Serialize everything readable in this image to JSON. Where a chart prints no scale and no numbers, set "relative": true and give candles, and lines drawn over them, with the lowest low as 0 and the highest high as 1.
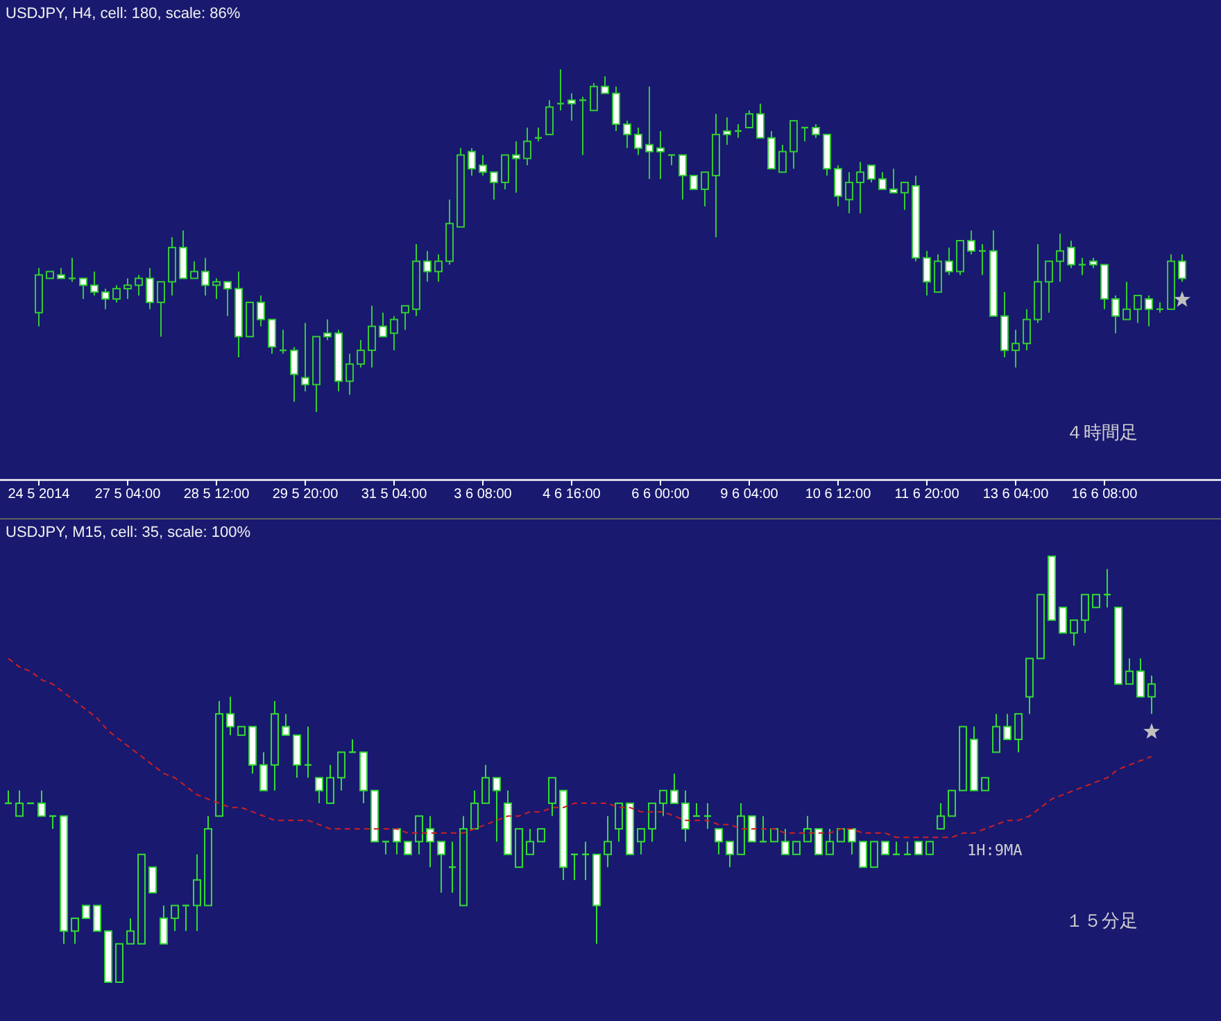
{
  "chart_data": [
    {
      "type": "candlestick",
      "title": "USDJPY, H4, cell: 180, scale: 86%",
      "relative": true,
      "tick_labels": "x",
      "categories": [
        "24 5 2014",
        null,
        null,
        null,
        null,
        null,
        null,
        null,
        "27 5 04:00",
        null,
        null,
        null,
        null,
        null,
        null,
        null,
        "28 5 12:00",
        null,
        null,
        null,
        null,
        null,
        null,
        null,
        "29 5 20:00",
        null,
        null,
        null,
        null,
        null,
        null,
        null,
        "31 5 04:00",
        null,
        null,
        null,
        null,
        null,
        null,
        null,
        "3 6 08:00",
        null,
        null,
        null,
        null,
        null,
        null,
        null,
        "4 6 16:00",
        null,
        null,
        null,
        null,
        null,
        null,
        null,
        "6 6 00:00",
        null,
        null,
        null,
        null,
        null,
        null,
        null,
        "9 6 04:00",
        null,
        null,
        null,
        null,
        null,
        null,
        null,
        "10 6 12:00",
        null,
        null,
        null,
        null,
        null,
        null,
        null,
        "11 6 20:00",
        null,
        null,
        null,
        null,
        null,
        null,
        null,
        "13 6 04:00",
        null,
        null,
        null,
        null,
        null,
        null,
        null,
        "16 6 08:00",
        null,
        null,
        null,
        null,
        null,
        null,
        null
      ],
      "annotations": [
        "４時間足"
      ],
      "series": [
        {
          "type": "candlestick",
          "color": "#33cc33",
          "ohlc": [
            [
              0.29,
              0.42,
              0.25,
              0.4
            ],
            [
              0.39,
              0.41,
              0.39,
              0.41
            ],
            [
              0.4,
              0.42,
              0.39,
              0.39
            ],
            [
              0.39,
              0.45,
              0.38,
              0.39
            ],
            [
              0.39,
              0.39,
              0.33,
              0.37
            ],
            [
              0.37,
              0.41,
              0.34,
              0.35
            ],
            [
              0.35,
              0.36,
              0.3,
              0.33
            ],
            [
              0.33,
              0.37,
              0.32,
              0.36
            ],
            [
              0.36,
              0.39,
              0.33,
              0.37
            ],
            [
              0.37,
              0.4,
              0.34,
              0.39
            ],
            [
              0.39,
              0.42,
              0.3,
              0.32
            ],
            [
              0.32,
              0.38,
              0.22,
              0.38
            ],
            [
              0.38,
              0.51,
              0.34,
              0.48
            ],
            [
              0.48,
              0.53,
              0.39,
              0.39
            ],
            [
              0.39,
              0.44,
              0.39,
              0.41
            ],
            [
              0.41,
              0.45,
              0.34,
              0.37
            ],
            [
              0.37,
              0.39,
              0.33,
              0.38
            ],
            [
              0.38,
              0.38,
              0.28,
              0.36
            ],
            [
              0.36,
              0.41,
              0.16,
              0.22
            ],
            [
              0.22,
              0.32,
              0.22,
              0.32
            ],
            [
              0.32,
              0.34,
              0.25,
              0.27
            ],
            [
              0.27,
              0.27,
              0.17,
              0.19
            ],
            [
              0.18,
              0.24,
              0.17,
              0.18
            ],
            [
              0.18,
              0.19,
              0.03,
              0.11
            ],
            [
              0.1,
              0.26,
              0.06,
              0.08
            ],
            [
              0.08,
              0.22,
              0.0,
              0.22
            ],
            [
              0.23,
              0.27,
              0.21,
              0.22
            ],
            [
              0.23,
              0.24,
              0.06,
              0.09
            ],
            [
              0.09,
              0.17,
              0.05,
              0.14
            ],
            [
              0.14,
              0.21,
              0.13,
              0.18
            ],
            [
              0.18,
              0.31,
              0.13,
              0.25
            ],
            [
              0.25,
              0.29,
              0.22,
              0.22
            ],
            [
              0.23,
              0.28,
              0.18,
              0.27
            ],
            [
              0.29,
              0.31,
              0.24,
              0.31
            ],
            [
              0.3,
              0.49,
              0.28,
              0.44
            ],
            [
              0.44,
              0.47,
              0.38,
              0.41
            ],
            [
              0.41,
              0.46,
              0.38,
              0.44
            ],
            [
              0.44,
              0.62,
              0.43,
              0.55
            ],
            [
              0.54,
              0.77,
              0.54,
              0.75
            ],
            [
              0.76,
              0.77,
              0.69,
              0.71
            ],
            [
              0.72,
              0.75,
              0.69,
              0.7
            ],
            [
              0.7,
              0.7,
              0.62,
              0.67
            ],
            [
              0.67,
              0.75,
              0.65,
              0.75
            ],
            [
              0.75,
              0.79,
              0.64,
              0.74
            ],
            [
              0.74,
              0.83,
              0.72,
              0.79
            ],
            [
              0.8,
              0.83,
              0.79,
              0.8
            ],
            [
              0.81,
              0.91,
              0.81,
              0.89
            ],
            [
              0.9,
              1.0,
              0.88,
              0.9
            ],
            [
              0.91,
              0.93,
              0.85,
              0.9
            ],
            [
              0.91,
              0.92,
              0.75,
              0.91
            ],
            [
              0.88,
              0.96,
              0.88,
              0.95
            ],
            [
              0.95,
              0.98,
              0.93,
              0.93
            ],
            [
              0.93,
              0.95,
              0.82,
              0.84
            ],
            [
              0.84,
              0.85,
              0.77,
              0.81
            ],
            [
              0.81,
              0.83,
              0.75,
              0.77
            ],
            [
              0.78,
              0.95,
              0.68,
              0.76
            ],
            [
              0.77,
              0.82,
              0.68,
              0.76
            ],
            [
              0.75,
              0.75,
              0.72,
              0.75
            ],
            [
              0.75,
              0.75,
              0.62,
              0.69
            ],
            [
              0.69,
              0.69,
              0.65,
              0.65
            ],
            [
              0.65,
              0.7,
              0.6,
              0.7
            ],
            [
              0.69,
              0.87,
              0.51,
              0.81
            ],
            [
              0.82,
              0.86,
              0.78,
              0.81
            ],
            [
              0.82,
              0.84,
              0.8,
              0.82
            ],
            [
              0.83,
              0.88,
              0.83,
              0.87
            ],
            [
              0.87,
              0.9,
              0.8,
              0.8
            ],
            [
              0.8,
              0.82,
              0.71,
              0.71
            ],
            [
              0.7,
              0.78,
              0.7,
              0.76
            ],
            [
              0.76,
              0.85,
              0.71,
              0.85
            ],
            [
              0.83,
              0.83,
              0.79,
              0.83
            ],
            [
              0.83,
              0.84,
              0.8,
              0.81
            ],
            [
              0.81,
              0.81,
              0.69,
              0.71
            ],
            [
              0.71,
              0.72,
              0.6,
              0.63
            ],
            [
              0.62,
              0.7,
              0.58,
              0.67
            ],
            [
              0.67,
              0.73,
              0.58,
              0.7
            ],
            [
              0.72,
              0.72,
              0.67,
              0.68
            ],
            [
              0.68,
              0.7,
              0.65,
              0.65
            ],
            [
              0.65,
              0.71,
              0.64,
              0.64
            ],
            [
              0.64,
              0.67,
              0.59,
              0.67
            ],
            [
              0.66,
              0.69,
              0.44,
              0.45
            ],
            [
              0.45,
              0.47,
              0.34,
              0.38
            ],
            [
              0.35,
              0.46,
              0.35,
              0.44
            ],
            [
              0.44,
              0.48,
              0.4,
              0.41
            ],
            [
              0.41,
              0.5,
              0.4,
              0.5
            ],
            [
              0.5,
              0.53,
              0.46,
              0.47
            ],
            [
              0.47,
              0.49,
              0.4,
              0.47
            ],
            [
              0.47,
              0.53,
              0.28,
              0.28
            ],
            [
              0.28,
              0.35,
              0.16,
              0.18
            ],
            [
              0.18,
              0.24,
              0.13,
              0.2
            ],
            [
              0.2,
              0.3,
              0.18,
              0.27
            ],
            [
              0.27,
              0.49,
              0.26,
              0.38
            ],
            [
              0.38,
              0.44,
              0.29,
              0.44
            ],
            [
              0.44,
              0.52,
              0.38,
              0.47
            ],
            [
              0.48,
              0.5,
              0.42,
              0.43
            ],
            [
              0.43,
              0.45,
              0.4,
              0.43
            ],
            [
              0.44,
              0.45,
              0.42,
              0.43
            ],
            [
              0.43,
              0.43,
              0.3,
              0.33
            ],
            [
              0.33,
              0.34,
              0.23,
              0.28
            ],
            [
              0.27,
              0.38,
              0.27,
              0.3
            ],
            [
              0.3,
              0.34,
              0.26,
              0.34
            ],
            [
              0.33,
              0.34,
              0.25,
              0.3
            ],
            [
              0.3,
              0.32,
              0.29,
              0.3
            ],
            [
              0.3,
              0.46,
              0.3,
              0.44
            ],
            [
              0.44,
              0.46,
              0.38,
              0.39
            ]
          ]
        },
        {
          "type": "scatter",
          "marker": "star",
          "color": "#c0c0c0",
          "values": [
            null,
            null,
            null,
            null,
            null,
            null,
            null,
            null,
            null,
            null,
            null,
            null,
            null,
            null,
            null,
            null,
            null,
            null,
            null,
            null,
            null,
            null,
            null,
            null,
            null,
            null,
            null,
            null,
            null,
            null,
            null,
            null,
            null,
            null,
            null,
            null,
            null,
            null,
            null,
            null,
            null,
            null,
            null,
            null,
            null,
            null,
            null,
            null,
            null,
            null,
            null,
            null,
            null,
            null,
            null,
            null,
            null,
            null,
            null,
            null,
            null,
            null,
            null,
            null,
            null,
            null,
            null,
            null,
            null,
            null,
            null,
            null,
            null,
            null,
            null,
            null,
            null,
            null,
            null,
            null,
            null,
            null,
            null,
            null,
            null,
            null,
            null,
            null,
            null,
            null,
            null,
            null,
            null,
            null,
            null,
            null,
            null,
            null,
            null,
            null,
            null,
            null,
            null,
            0.33
          ]
        }
      ]
    },
    {
      "type": "candlestick",
      "title": "USDJPY, M15, cell: 35, scale: 100%",
      "relative": true,
      "tick_labels": false,
      "categories": [
        null,
        null,
        null,
        null,
        null,
        null,
        null,
        null,
        null,
        null,
        null,
        null,
        null,
        null,
        null,
        null,
        null,
        null,
        null,
        null,
        null,
        null,
        null,
        null,
        null,
        null,
        null,
        null,
        null,
        null,
        null,
        null,
        null,
        null,
        null,
        null,
        null,
        null,
        null,
        null,
        null,
        null,
        null,
        null,
        null,
        null,
        null,
        null,
        null,
        null,
        null,
        null,
        null,
        null,
        null,
        null,
        null,
        null,
        null,
        null,
        null,
        null,
        null,
        null,
        null,
        null,
        null,
        null,
        null,
        null,
        null,
        null,
        null,
        null,
        null,
        null,
        null,
        null,
        null,
        null,
        null,
        null,
        null,
        null,
        null,
        null,
        null,
        null,
        null,
        null,
        null,
        null,
        null,
        null,
        null,
        null,
        null,
        null,
        null,
        null,
        null,
        null,
        null,
        null
      ],
      "annotations": [
        "１５分足"
      ],
      "series": [
        {
          "type": "line",
          "name": "1H:9MA",
          "color": "#cc2020",
          "line_style": "dashed",
          "values": [
            0.76,
            0.74,
            0.73,
            0.71,
            0.7,
            0.68,
            0.66,
            0.64,
            0.62,
            0.59,
            0.57,
            0.55,
            0.53,
            0.51,
            0.49,
            0.48,
            0.46,
            0.44,
            0.43,
            0.42,
            0.41,
            0.41,
            0.4,
            0.39,
            0.38,
            0.38,
            0.38,
            0.38,
            0.37,
            0.36,
            0.36,
            0.36,
            0.36,
            0.36,
            0.36,
            0.36,
            0.35,
            0.35,
            0.35,
            0.35,
            0.35,
            0.35,
            0.36,
            0.37,
            0.38,
            0.39,
            0.39,
            0.4,
            0.4,
            0.41,
            0.41,
            0.42,
            0.42,
            0.42,
            0.42,
            0.41,
            0.41,
            0.4,
            0.4,
            0.4,
            0.39,
            0.38,
            0.38,
            0.38,
            0.37,
            0.37,
            0.36,
            0.36,
            0.36,
            0.36,
            0.35,
            0.35,
            0.35,
            0.35,
            0.35,
            0.36,
            0.36,
            0.35,
            0.35,
            0.35,
            0.34,
            0.34,
            0.34,
            0.34,
            0.34,
            0.34,
            0.35,
            0.35,
            0.36,
            0.37,
            0.38,
            0.38,
            0.39,
            0.41,
            0.43,
            0.44,
            0.45,
            0.46,
            0.47,
            0.48,
            0.5,
            0.51,
            0.52,
            0.53
          ]
        },
        {
          "type": "candlestick",
          "color": "#33dd33",
          "ohlc": [
            [
              0.42,
              0.45,
              0.42,
              0.42
            ],
            [
              0.39,
              0.45,
              0.39,
              0.42
            ],
            [
              0.42,
              0.42,
              0.42,
              0.42
            ],
            [
              0.42,
              0.45,
              0.39,
              0.39
            ],
            [
              0.39,
              0.39,
              0.36,
              0.39
            ],
            [
              0.39,
              0.39,
              0.09,
              0.12
            ],
            [
              0.12,
              0.15,
              0.09,
              0.15
            ],
            [
              0.18,
              0.18,
              0.15,
              0.15
            ],
            [
              0.18,
              0.18,
              0.12,
              0.12
            ],
            [
              0.12,
              0.12,
              0.0,
              0.0
            ],
            [
              0.0,
              0.09,
              0.0,
              0.09
            ],
            [
              0.09,
              0.15,
              0.09,
              0.12
            ],
            [
              0.09,
              0.3,
              0.09,
              0.3
            ],
            [
              0.27,
              0.27,
              0.21,
              0.21
            ],
            [
              0.15,
              0.18,
              0.09,
              0.09
            ],
            [
              0.15,
              0.18,
              0.12,
              0.18
            ],
            [
              0.18,
              0.18,
              0.12,
              0.18
            ],
            [
              0.18,
              0.3,
              0.12,
              0.24
            ],
            [
              0.18,
              0.39,
              0.18,
              0.36
            ],
            [
              0.39,
              0.66,
              0.39,
              0.63
            ],
            [
              0.63,
              0.67,
              0.58,
              0.6
            ],
            [
              0.58,
              0.6,
              0.58,
              0.6
            ],
            [
              0.6,
              0.6,
              0.49,
              0.51
            ],
            [
              0.51,
              0.54,
              0.45,
              0.45
            ],
            [
              0.51,
              0.66,
              0.45,
              0.63
            ],
            [
              0.6,
              0.63,
              0.58,
              0.58
            ],
            [
              0.58,
              0.58,
              0.48,
              0.51
            ],
            [
              0.51,
              0.6,
              0.48,
              0.51
            ],
            [
              0.48,
              0.48,
              0.42,
              0.45
            ],
            [
              0.42,
              0.51,
              0.42,
              0.48
            ],
            [
              0.48,
              0.54,
              0.45,
              0.54
            ],
            [
              0.54,
              0.57,
              0.54,
              0.54
            ],
            [
              0.54,
              0.54,
              0.42,
              0.45
            ],
            [
              0.45,
              0.45,
              0.33,
              0.33
            ],
            [
              0.33,
              0.33,
              0.3,
              0.33
            ],
            [
              0.36,
              0.36,
              0.3,
              0.33
            ],
            [
              0.33,
              0.33,
              0.3,
              0.3
            ],
            [
              0.33,
              0.39,
              0.3,
              0.39
            ],
            [
              0.36,
              0.39,
              0.27,
              0.33
            ],
            [
              0.33,
              0.33,
              0.21,
              0.3
            ],
            [
              0.27,
              0.33,
              0.21,
              0.27
            ],
            [
              0.18,
              0.39,
              0.18,
              0.36
            ],
            [
              0.36,
              0.45,
              0.36,
              0.42
            ],
            [
              0.42,
              0.51,
              0.42,
              0.48
            ],
            [
              0.48,
              0.48,
              0.33,
              0.45
            ],
            [
              0.42,
              0.45,
              0.3,
              0.3
            ],
            [
              0.27,
              0.36,
              0.27,
              0.36
            ],
            [
              0.3,
              0.36,
              0.3,
              0.33
            ],
            [
              0.33,
              0.36,
              0.33,
              0.36
            ],
            [
              0.42,
              0.48,
              0.39,
              0.48
            ],
            [
              0.45,
              0.45,
              0.24,
              0.27
            ],
            [
              0.3,
              0.3,
              0.24,
              0.3
            ],
            [
              0.3,
              0.33,
              0.24,
              0.3
            ],
            [
              0.3,
              0.3,
              0.09,
              0.18
            ],
            [
              0.3,
              0.39,
              0.27,
              0.33
            ],
            [
              0.36,
              0.42,
              0.33,
              0.42
            ],
            [
              0.42,
              0.42,
              0.3,
              0.3
            ],
            [
              0.33,
              0.36,
              0.3,
              0.36
            ],
            [
              0.36,
              0.42,
              0.33,
              0.42
            ],
            [
              0.42,
              0.45,
              0.39,
              0.45
            ],
            [
              0.45,
              0.49,
              0.42,
              0.42
            ],
            [
              0.42,
              0.45,
              0.33,
              0.36
            ],
            [
              0.39,
              0.42,
              0.39,
              0.39
            ],
            [
              0.39,
              0.42,
              0.36,
              0.39
            ],
            [
              0.36,
              0.36,
              0.3,
              0.33
            ],
            [
              0.33,
              0.33,
              0.27,
              0.3
            ],
            [
              0.3,
              0.42,
              0.3,
              0.39
            ],
            [
              0.39,
              0.39,
              0.33,
              0.33
            ],
            [
              0.33,
              0.39,
              0.33,
              0.33
            ],
            [
              0.33,
              0.36,
              0.33,
              0.36
            ],
            [
              0.33,
              0.36,
              0.3,
              0.3
            ],
            [
              0.3,
              0.33,
              0.3,
              0.33
            ],
            [
              0.33,
              0.39,
              0.33,
              0.36
            ],
            [
              0.36,
              0.36,
              0.3,
              0.3
            ],
            [
              0.3,
              0.36,
              0.3,
              0.33
            ],
            [
              0.33,
              0.36,
              0.33,
              0.36
            ],
            [
              0.36,
              0.36,
              0.3,
              0.33
            ],
            [
              0.33,
              0.33,
              0.27,
              0.27
            ],
            [
              0.27,
              0.33,
              0.27,
              0.33
            ],
            [
              0.33,
              0.33,
              0.3,
              0.3
            ],
            [
              0.3,
              0.33,
              0.3,
              0.3
            ],
            [
              0.3,
              0.33,
              0.3,
              0.3
            ],
            [
              0.33,
              0.33,
              0.3,
              0.3
            ],
            [
              0.3,
              0.33,
              0.3,
              0.33
            ],
            [
              0.36,
              0.42,
              0.36,
              0.39
            ],
            [
              0.39,
              0.45,
              0.39,
              0.45
            ],
            [
              0.45,
              0.6,
              0.45,
              0.6
            ],
            [
              0.57,
              0.6,
              0.45,
              0.45
            ],
            [
              0.45,
              0.48,
              0.45,
              0.48
            ],
            [
              0.54,
              0.63,
              0.54,
              0.6
            ],
            [
              0.6,
              0.63,
              0.57,
              0.57
            ],
            [
              0.57,
              0.63,
              0.54,
              0.63
            ],
            [
              0.67,
              0.76,
              0.63,
              0.76
            ],
            [
              0.76,
              0.91,
              0.76,
              0.91
            ],
            [
              1.0,
              1.0,
              0.85,
              0.85
            ],
            [
              0.88,
              0.88,
              0.82,
              0.82
            ],
            [
              0.82,
              0.85,
              0.79,
              0.85
            ],
            [
              0.85,
              0.91,
              0.82,
              0.91
            ],
            [
              0.88,
              0.91,
              0.88,
              0.91
            ],
            [
              0.91,
              0.97,
              0.88,
              0.91
            ],
            [
              0.88,
              0.88,
              0.7,
              0.7
            ],
            [
              0.7,
              0.76,
              0.7,
              0.73
            ],
            [
              0.73,
              0.76,
              0.67,
              0.67
            ],
            [
              0.67,
              0.72,
              0.63,
              0.7
            ]
          ]
        },
        {
          "type": "scatter",
          "marker": "star",
          "color": "#c0c0c0",
          "values": [
            null,
            null,
            null,
            null,
            null,
            null,
            null,
            null,
            null,
            null,
            null,
            null,
            null,
            null,
            null,
            null,
            null,
            null,
            null,
            null,
            null,
            null,
            null,
            null,
            null,
            null,
            null,
            null,
            null,
            null,
            null,
            null,
            null,
            null,
            null,
            null,
            null,
            null,
            null,
            null,
            null,
            null,
            null,
            null,
            null,
            null,
            null,
            null,
            null,
            null,
            null,
            null,
            null,
            null,
            null,
            null,
            null,
            null,
            null,
            null,
            null,
            null,
            null,
            null,
            null,
            null,
            null,
            null,
            null,
            null,
            null,
            null,
            null,
            null,
            null,
            null,
            null,
            null,
            null,
            null,
            null,
            null,
            null,
            null,
            null,
            null,
            null,
            null,
            null,
            null,
            null,
            null,
            null,
            null,
            null,
            null,
            null,
            null,
            null,
            null,
            null,
            null,
            null,
            0.59
          ]
        }
      ]
    }
  ]
}
